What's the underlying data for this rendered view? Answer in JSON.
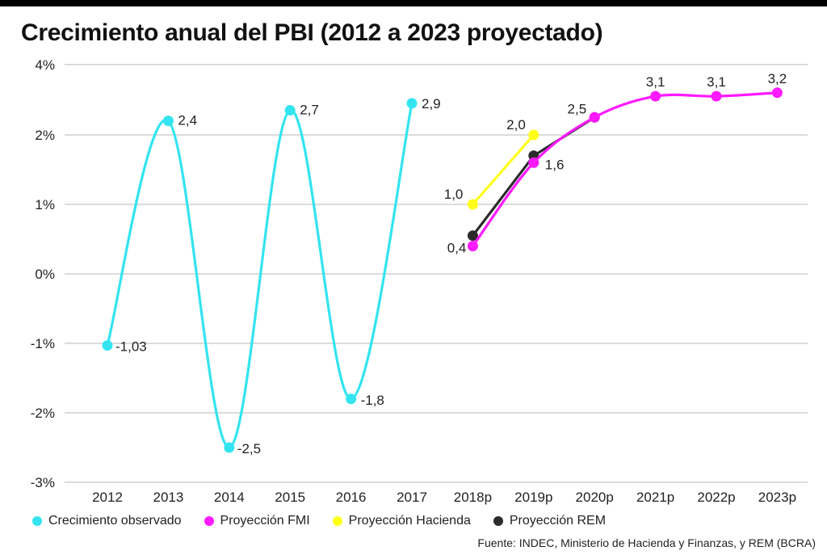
{
  "chart_data": {
    "type": "line",
    "title": "Crecimiento anual del PBI (2012 a 2023 proyectado)",
    "categories": [
      "2012",
      "2013",
      "2014",
      "2015",
      "2016",
      "2017",
      "2018p",
      "2019p",
      "2020p",
      "2021p",
      "2022p",
      "2023p"
    ],
    "yticks": [
      4,
      2,
      1,
      0,
      -1,
      -2,
      -3
    ],
    "ytick_labels": [
      "4%",
      "2%",
      "1%",
      "0%",
      "-1%",
      "-2%",
      "-3%"
    ],
    "grid": true,
    "legend_position": "bottom",
    "series": [
      {
        "name": "Crecimiento observado",
        "color": "#33e4f0",
        "x": [
          "2012",
          "2013",
          "2014",
          "2015",
          "2016",
          "2017"
        ],
        "values": [
          -1.03,
          2.4,
          -2.5,
          2.7,
          -1.8,
          2.9
        ],
        "labels": [
          "-1,03",
          "2,4",
          "-2,5",
          "2,7",
          "-1,8",
          "2,9"
        ]
      },
      {
        "name": "Proyección FMI",
        "color": "#ff1aff",
        "x": [
          "2018p",
          "2019p",
          "2020p",
          "2021p",
          "2022p",
          "2023p"
        ],
        "values": [
          0.4,
          1.6,
          2.5,
          3.1,
          3.1,
          3.2
        ],
        "labels": [
          "0,4",
          "1,6",
          "2,5",
          "3,1",
          "3,1",
          "3,2"
        ]
      },
      {
        "name": "Proyección Hacienda",
        "color": "#ffff1a",
        "x": [
          "2018p",
          "2019p"
        ],
        "values": [
          1.0,
          2.0
        ],
        "labels": [
          "1,0",
          "2,0"
        ]
      },
      {
        "name": "Proyección REM",
        "color": "#2b2b2b",
        "x": [
          "2018p",
          "2019p",
          "2020p"
        ],
        "values": [
          0.55,
          1.7,
          2.5
        ],
        "labels": [
          "",
          "",
          ""
        ]
      }
    ]
  },
  "source": "Fuente: INDEC, Ministerio de Hacienda y Finanzas, y REM (BCRA)"
}
